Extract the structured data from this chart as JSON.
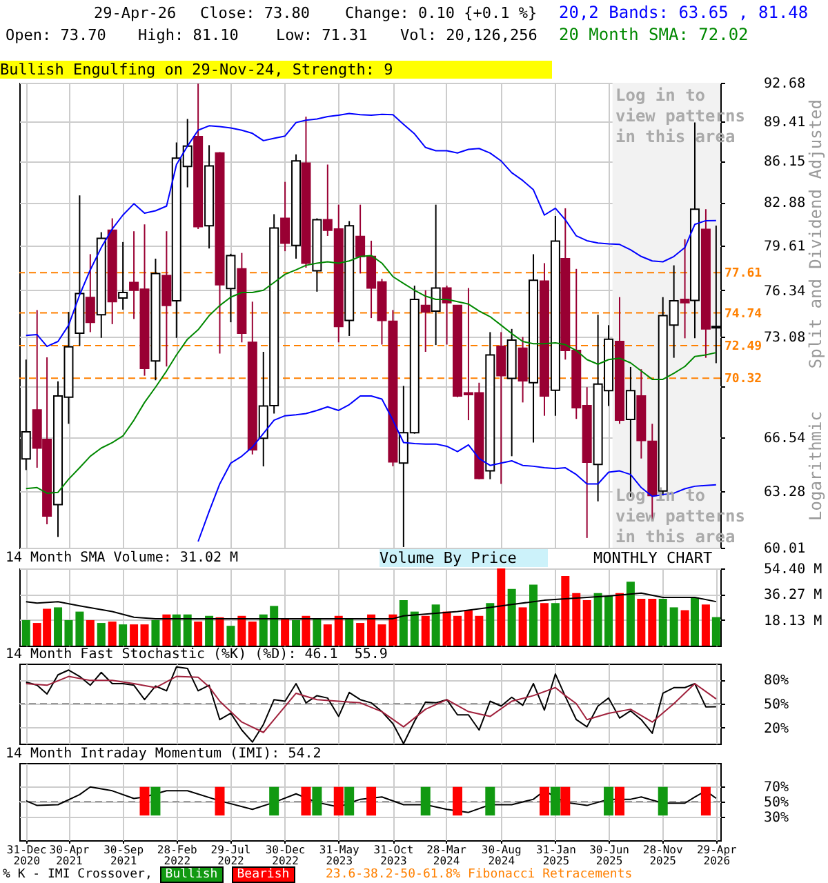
{
  "chart_data": [
    {
      "type": "candlestick",
      "title": "Bullish Engulfing on 29-Nov-24, Strength: 9",
      "ylabel": "Split and Dividend Adjusted",
      "annotations": [
        "29-Apr-26",
        "Close: 73.80",
        "Change: 0.10 {+0.1 %}",
        "Open: 73.70",
        "High: 81.10",
        "Low: 71.31",
        "Vol: 20,126,256",
        "Log in to view patterns in this area",
        "Log in to view patterns in this area",
        "Logarithmic",
        "Volume By Price",
        "MONTHLY CHART"
      ],
      "x": [
        "2020-12-31",
        "2021-01-31",
        "2021-02-28",
        "2021-03-31",
        "2021-04-30",
        "2021-05-31",
        "2021-06-30",
        "2021-07-31",
        "2021-08-31",
        "2021-09-30",
        "2021-10-31",
        "2021-11-30",
        "2021-12-31",
        "2022-01-31",
        "2022-02-28",
        "2022-03-31",
        "2022-04-30",
        "2022-05-31",
        "2022-06-30",
        "2022-07-31",
        "2022-08-31",
        "2022-09-30",
        "2022-10-31",
        "2022-11-30",
        "2022-12-31",
        "2023-01-31",
        "2023-02-28",
        "2023-03-31",
        "2023-04-30",
        "2023-05-31",
        "2023-06-30",
        "2023-07-31",
        "2023-08-31",
        "2023-09-30",
        "2023-10-31",
        "2023-11-30",
        "2023-12-31",
        "2024-01-31",
        "2024-02-29",
        "2024-03-31",
        "2024-04-30",
        "2024-05-31",
        "2024-06-30",
        "2024-07-31",
        "2024-08-31",
        "2024-09-30",
        "2024-10-31",
        "2024-11-30",
        "2024-12-31",
        "2025-01-31",
        "2025-02-28",
        "2025-03-31",
        "2025-04-30",
        "2025-05-31",
        "2025-06-30",
        "2025-07-31",
        "2025-08-31",
        "2025-09-30",
        "2025-10-31",
        "2025-11-30",
        "2025-12-31",
        "2026-01-31",
        "2026-02-28",
        "2026-03-31",
        "2026-04-29"
      ],
      "xlim": [
        "2020-12-12",
        "2026-05-11"
      ],
      "xticks": [
        {
          "value": "2020-12-31",
          "label": null
        },
        {
          "value": "2021-04-30",
          "label": null
        },
        {
          "value": "2021-09-30",
          "label": null
        },
        {
          "value": "2022-02-28",
          "label": null
        },
        {
          "value": "2022-07-29",
          "label": null
        },
        {
          "value": "2022-12-30",
          "label": null
        },
        {
          "value": "2023-05-31",
          "label": null
        },
        {
          "value": "2023-10-31",
          "label": null
        },
        {
          "value": "2024-03-28",
          "label": null
        },
        {
          "value": "2024-08-30",
          "label": null
        },
        {
          "value": "2025-01-31",
          "label": null
        },
        {
          "value": "2025-06-30",
          "label": null
        },
        {
          "value": "2025-11-28",
          "label": null
        },
        {
          "value": "2026-04-29",
          "label": null
        }
      ],
      "tick_labels": "y",
      "log": true,
      "grid": true,
      "ylim": [
        60.01,
        92.68
      ],
      "yticks": [
        60.01,
        63.28,
        66.54,
        {
          "value": 69.81,
          "label": null
        },
        73.08,
        76.34,
        79.61,
        82.88,
        86.15,
        89.41,
        92.68
      ],
      "ohlc": [
        [
          65.2,
          71.55,
          64.53,
          66.88
        ],
        [
          68.26,
          74.94,
          64.67,
          65.87
        ],
        [
          66.4,
          71.7,
          61.34,
          61.82
        ],
        [
          62.48,
          70.11,
          60.62,
          69.16
        ],
        [
          69.08,
          74.81,
          67.38,
          72.41
        ],
        [
          73.34,
          83.42,
          72.47,
          76.11
        ],
        [
          75.82,
          78.96,
          73.41,
          74.09
        ],
        [
          74.61,
          80.6,
          73.02,
          80.14
        ],
        [
          80.74,
          81.65,
          73.96,
          75.53
        ],
        [
          75.79,
          79.86,
          74.97,
          76.18
        ],
        [
          76.9,
          80.67,
          74.32,
          76.34
        ],
        [
          76.41,
          81.19,
          70.48,
          70.97
        ],
        [
          71.46,
          78.63,
          70.18,
          77.55
        ],
        [
          77.39,
          80.67,
          71.09,
          75.26
        ],
        [
          75.59,
          87.65,
          73.02,
          86.38
        ],
        [
          85.71,
          89.6,
          84.05,
          87.35
        ],
        [
          88.14,
          92.6,
          80.84,
          81.02
        ],
        [
          81.09,
          87.43,
          79.38,
          85.75
        ],
        [
          86.79,
          86.87,
          71.95,
          76.73
        ],
        [
          76.47,
          78.99,
          74.09,
          78.86
        ],
        [
          77.88,
          79.05,
          72.71,
          73.34
        ],
        [
          72.71,
          75.53,
          65.48,
          65.76
        ],
        [
          66.48,
          72.07,
          64.75,
          68.51
        ],
        [
          68.54,
          81.97,
          68.03,
          80.91
        ],
        [
          81.65,
          84.48,
          79.18,
          79.78
        ],
        [
          79.61,
          86.68,
          78.63,
          86.15
        ],
        [
          85.97,
          89.79,
          77.97,
          78.3
        ],
        [
          77.75,
          81.65,
          76.24,
          81.54
        ],
        [
          81.54,
          85.86,
          80.32,
          80.74
        ],
        [
          80.84,
          82.7,
          72.71,
          73.8
        ],
        [
          74.22,
          81.44,
          73.15,
          81.09
        ],
        [
          80.28,
          82.7,
          77.55,
          78.79
        ],
        [
          78.79,
          79.96,
          74.38,
          76.5
        ],
        [
          76.93,
          77.16,
          72.56,
          74.22
        ],
        [
          74.16,
          74.94,
          64.76,
          65.03
        ],
        [
          64.95,
          69.81,
          60.05,
          66.82
        ],
        [
          66.82,
          76.67,
          66.76,
          75.69
        ],
        [
          75.26,
          76.34,
          72.07,
          74.81
        ],
        [
          74.87,
          82.7,
          72.53,
          76.5
        ],
        [
          76.5,
          76.67,
          72.56,
          75.46
        ],
        [
          75.26,
          75.3,
          69.08,
          69.16
        ],
        [
          69.36,
          76.5,
          67.61,
          69.25
        ],
        [
          69.36,
          70.02,
          63.98,
          64.03
        ],
        [
          64.48,
          73.41,
          63.98,
          71.86
        ],
        [
          72.44,
          73.41,
          63.7,
          70.48
        ],
        [
          70.3,
          73.63,
          65.37,
          72.87
        ],
        [
          72.32,
          73.08,
          68.74,
          70.15
        ],
        [
          70.02,
          78.96,
          66.21,
          77.06
        ],
        [
          76.99,
          78.3,
          67.89,
          69.16
        ],
        [
          69.53,
          81.83,
          67.89,
          79.93
        ],
        [
          78.63,
          82.42,
          71.55,
          72.16
        ],
        [
          72.16,
          77.88,
          67.69,
          68.4
        ],
        [
          68.54,
          69.73,
          60.56,
          65.01
        ],
        [
          64.87,
          74.61,
          62.67,
          69.93
        ],
        [
          69.5,
          73.89,
          68.51,
          72.93
        ],
        [
          72.77,
          75.85,
          67.38,
          67.61
        ],
        [
          67.66,
          71.06,
          62.93,
          69.5
        ],
        [
          69.16,
          70.91,
          65.23,
          66.34
        ],
        [
          66.29,
          67.38,
          61.56,
          63.01
        ],
        [
          63.28,
          75.85,
          63.01,
          74.55
        ],
        [
          73.89,
          78.14,
          71.67,
          75.59
        ],
        [
          75.69,
          80.07,
          72.99,
          75.46
        ],
        [
          75.62,
          89.3,
          72.99,
          82.35
        ],
        [
          80.81,
          82.35,
          71.67,
          73.63
        ],
        [
          73.7,
          81.1,
          71.31,
          73.8
        ]
      ],
      "colors": [
        "#ffffff",
        "#990033",
        "#990033",
        "#ffffff",
        "#ffffff",
        "#ffffff",
        "#990033",
        "#ffffff",
        "#990033",
        "#ffffff",
        "#990033",
        "#990033",
        "#ffffff",
        "#990033",
        "#ffffff",
        "#ffffff",
        "#990033",
        "#ffffff",
        "#990033",
        "#ffffff",
        "#990033",
        "#990033",
        "#ffffff",
        "#ffffff",
        "#990033",
        "#ffffff",
        "#990033",
        "#ffffff",
        "#990033",
        "#990033",
        "#ffffff",
        "#990033",
        "#990033",
        "#990033",
        "#990033",
        "#ffffff",
        "#ffffff",
        "#990033",
        "#ffffff",
        "#990033",
        "#990033",
        "#990033",
        "#990033",
        "#ffffff",
        "#990033",
        "#ffffff",
        "#990033",
        "#ffffff",
        "#990033",
        "#ffffff",
        "#990033",
        "#990033",
        "#990033",
        "#ffffff",
        "#ffffff",
        "#990033",
        "#ffffff",
        "#990033",
        "#990033",
        "#ffffff",
        "#ffffff",
        "#990033",
        "#ffffff",
        "#990033",
        "#ffffff"
      ],
      "series": [
        {
          "name": "20,2 Bands: 63.65 , 81.48",
          "type": "line",
          "color": "#0000ff",
          "values": [
            73.18,
            73.24,
            72.44,
            72.77,
            73.89,
            76.01,
            77.81,
            79.45,
            80.84,
            81.9,
            82.77,
            82.05,
            82.23,
            82.59,
            85.86,
            87.35,
            88.66,
            89.03,
            88.96,
            88.85,
            88.66,
            88.4,
            87.8,
            87.99,
            88.18,
            89.3,
            89.49,
            89.6,
            89.8,
            89.91,
            90.06,
            89.95,
            89.91,
            89.99,
            89.95,
            89.15,
            88.36,
            87.24,
            86.98,
            86.98,
            86.79,
            87.09,
            87.16,
            86.79,
            86.15,
            85.21,
            84.59,
            83.86,
            81.9,
            82.42,
            81.54,
            80.32,
            79.96,
            79.79,
            79.72,
            79.68,
            79.28,
            78.79,
            78.46,
            78.4,
            78.79,
            79.45,
            81.19,
            81.47,
            81.48
          ]
        },
        {
          "type": "line",
          "color": "#0000ff",
          "values": [
            null,
            null,
            null,
            null,
            null,
            null,
            null,
            null,
            null,
            null,
            null,
            null,
            null,
            null,
            null,
            null,
            60.36,
            62.08,
            63.7,
            64.95,
            65.37,
            65.93,
            66.77,
            67.61,
            67.89,
            67.95,
            68.03,
            68.23,
            68.46,
            68.23,
            68.6,
            69.16,
            69.16,
            68.96,
            67.61,
            66.21,
            66.15,
            66.12,
            66.12,
            65.98,
            65.65,
            66.07,
            65.23,
            64.81,
            64.95,
            65.09,
            64.81,
            64.76,
            64.67,
            64.62,
            64.67,
            64.26,
            63.7,
            63.7,
            64.4,
            64.48,
            64.26,
            63.48,
            62.96,
            63.07,
            63.15,
            63.41,
            63.56,
            63.61,
            63.65
          ]
        },
        {
          "name": "20 Month SMA: 72.02",
          "type": "line",
          "color": "#008800",
          "values": [
            63.42,
            63.48,
            63.15,
            63.2,
            63.98,
            64.67,
            65.37,
            65.87,
            66.21,
            66.62,
            67.61,
            68.74,
            69.73,
            70.79,
            71.86,
            72.93,
            73.57,
            74.55,
            75.26,
            75.85,
            76.18,
            76.18,
            76.34,
            76.9,
            77.49,
            77.81,
            78.14,
            78.3,
            78.4,
            78.3,
            78.46,
            78.79,
            78.86,
            78.3,
            77.32,
            76.83,
            76.34,
            75.92,
            75.69,
            75.69,
            75.53,
            75.36,
            74.87,
            74.48,
            73.89,
            73.31,
            72.77,
            72.62,
            72.62,
            72.68,
            72.56,
            72.16,
            71.55,
            71.24,
            71.55,
            71.64,
            71.33,
            70.79,
            70.24,
            70.24,
            70.64,
            71.09,
            71.76,
            71.86,
            72.02
          ]
        }
      ],
      "ref_lines": [
        {
          "axis": "y",
          "value": 77.61,
          "label": "77.61",
          "color": "#ff8000",
          "line_style": "dashed"
        },
        {
          "axis": "y",
          "value": 74.74,
          "label": "74.74",
          "color": "#ff8000",
          "line_style": "dashed"
        },
        {
          "axis": "y",
          "value": 72.49,
          "label": "72.49",
          "color": "#ff8000",
          "line_style": "dashed"
        },
        {
          "axis": "y",
          "value": 70.32,
          "label": "70.32",
          "color": "#ff8000",
          "line_style": "dashed"
        }
      ],
      "bands": [
        {
          "axis": "x",
          "from": "2025-07-11",
          "to": "2026-05-11",
          "color": "#f2f2f2"
        }
      ]
    },
    {
      "type": "bar",
      "title": "14 Month SMA Volume: 31.02 M",
      "x": [
        "2020-12-31",
        "2021-01-31",
        "2021-02-28",
        "2021-03-31",
        "2021-04-30",
        "2021-05-31",
        "2021-06-30",
        "2021-07-31",
        "2021-08-31",
        "2021-09-30",
        "2021-10-31",
        "2021-11-30",
        "2021-12-31",
        "2022-01-31",
        "2022-02-28",
        "2022-03-31",
        "2022-04-30",
        "2022-05-31",
        "2022-06-30",
        "2022-07-31",
        "2022-08-31",
        "2022-09-30",
        "2022-10-31",
        "2022-11-30",
        "2022-12-31",
        "2023-01-31",
        "2023-02-28",
        "2023-03-31",
        "2023-04-30",
        "2023-05-31",
        "2023-06-30",
        "2023-07-31",
        "2023-08-31",
        "2023-09-30",
        "2023-10-31",
        "2023-11-30",
        "2023-12-31",
        "2024-01-31",
        "2024-02-29",
        "2024-03-31",
        "2024-04-30",
        "2024-05-31",
        "2024-06-30",
        "2024-07-31",
        "2024-08-31",
        "2024-09-30",
        "2024-10-31",
        "2024-11-30",
        "2024-12-31",
        "2025-01-31",
        "2025-02-28",
        "2025-03-31",
        "2025-04-30",
        "2025-05-31",
        "2025-06-30",
        "2025-07-31",
        "2025-08-31",
        "2025-09-30",
        "2025-10-31",
        "2025-11-30",
        "2025-12-31",
        "2026-01-31",
        "2026-02-28",
        "2026-03-31",
        "2026-04-29"
      ],
      "xlim": [
        "2020-12-12",
        "2026-05-11"
      ],
      "xticks": [
        {
          "value": "2020-12-31",
          "label": null
        },
        {
          "value": "2021-04-30",
          "label": null
        },
        {
          "value": "2021-09-30",
          "label": null
        },
        {
          "value": "2022-02-28",
          "label": null
        },
        {
          "value": "2022-07-29",
          "label": null
        },
        {
          "value": "2022-12-30",
          "label": null
        },
        {
          "value": "2023-05-31",
          "label": null
        },
        {
          "value": "2023-10-31",
          "label": null
        },
        {
          "value": "2024-03-28",
          "label": null
        },
        {
          "value": "2024-08-30",
          "label": null
        },
        {
          "value": "2025-01-31",
          "label": null
        },
        {
          "value": "2025-06-30",
          "label": null
        },
        {
          "value": "2025-11-28",
          "label": null
        },
        {
          "value": "2026-04-29",
          "label": null
        }
      ],
      "tick_labels": "y",
      "grid": true,
      "ylim": [
        0,
        54.4
      ],
      "yticks": [
        {
          "value": 18.13,
          "label": "18.13 M"
        },
        {
          "value": 36.27,
          "label": "36.27 M"
        },
        {
          "value": 54.4,
          "label": "54.40 M"
        }
      ],
      "values": [
        18,
        16,
        26,
        27,
        18,
        24,
        18,
        16,
        17,
        15,
        15,
        15,
        18,
        22,
        22,
        22,
        17,
        21,
        20,
        14,
        21,
        17,
        22,
        28,
        19,
        18,
        21,
        19,
        15,
        21,
        19,
        16,
        22,
        15,
        22,
        32,
        24,
        21,
        29,
        24,
        21,
        25,
        21,
        30,
        54.4,
        40,
        27,
        43,
        30,
        30,
        49,
        37,
        32,
        37,
        35,
        37,
        45,
        33,
        33,
        33,
        27,
        25,
        34,
        29,
        20.13
      ],
      "colors": [
        "#119911",
        "#ff0000",
        "#ff0000",
        "#119911",
        "#119911",
        "#119911",
        "#ff0000",
        "#119911",
        "#ff0000",
        "#119911",
        "#ff0000",
        "#ff0000",
        "#119911",
        "#ff0000",
        "#119911",
        "#119911",
        "#ff0000",
        "#119911",
        "#ff0000",
        "#119911",
        "#ff0000",
        "#ff0000",
        "#119911",
        "#119911",
        "#ff0000",
        "#119911",
        "#ff0000",
        "#119911",
        "#ff0000",
        "#ff0000",
        "#119911",
        "#ff0000",
        "#ff0000",
        "#ff0000",
        "#ff0000",
        "#119911",
        "#119911",
        "#ff0000",
        "#119911",
        "#ff0000",
        "#ff0000",
        "#ff0000",
        "#ff0000",
        "#119911",
        "#ff0000",
        "#119911",
        "#ff0000",
        "#119911",
        "#ff0000",
        "#119911",
        "#ff0000",
        "#ff0000",
        "#ff0000",
        "#119911",
        "#119911",
        "#ff0000",
        "#119911",
        "#ff0000",
        "#ff0000",
        "#119911",
        "#119911",
        "#ff0000",
        "#119911",
        "#ff0000",
        "#119911"
      ],
      "series": [
        {
          "type": "line",
          "color": "#000000",
          "x": [
            "2020-12-31",
            "2021-01-31",
            "2021-03-31",
            "2021-05-31",
            "2021-08-31",
            "2021-10-31",
            "2021-12-31",
            "2022-08-31",
            "2023-06-30",
            "2023-10-31",
            "2023-11-30",
            "2024-04-30",
            "2024-07-31",
            "2024-09-30",
            "2024-12-31",
            "2025-02-28",
            "2025-06-30",
            "2025-09-30",
            "2025-11-30",
            "2026-02-28",
            "2026-04-29"
          ],
          "values": [
            31,
            30,
            31,
            28,
            24,
            20,
            19,
            19,
            19,
            19,
            21,
            24,
            27,
            29,
            32,
            33,
            35,
            37,
            34,
            34,
            31.02
          ]
        }
      ]
    },
    {
      "type": "line",
      "title": "14 Month Fast Stochastic (%K) (%D): 46.1  55.9",
      "x": [
        "2020-12-31",
        "2021-01-31",
        "2021-02-28",
        "2021-03-31",
        "2021-04-30",
        "2021-05-31",
        "2021-06-30",
        "2021-07-31",
        "2021-08-31",
        "2021-09-30",
        "2021-10-31",
        "2021-11-30",
        "2021-12-31",
        "2022-01-31",
        "2022-02-28",
        "2022-03-31",
        "2022-04-30",
        "2022-05-31",
        "2022-06-30",
        "2022-07-31",
        "2022-08-31",
        "2022-09-30",
        "2022-10-31",
        "2022-11-30",
        "2022-12-31",
        "2023-01-31",
        "2023-02-28",
        "2023-03-31",
        "2023-04-30",
        "2023-05-31",
        "2023-06-30",
        "2023-07-31",
        "2023-08-31",
        "2023-09-30",
        "2023-10-31",
        "2023-11-30",
        "2023-12-31",
        "2024-01-31",
        "2024-02-29",
        "2024-03-31",
        "2024-04-30",
        "2024-05-31",
        "2024-06-30",
        "2024-07-31",
        "2024-08-31",
        "2024-09-30",
        "2024-10-31",
        "2024-11-30",
        "2024-12-31",
        "2025-01-31",
        "2025-02-28",
        "2025-03-31",
        "2025-04-30",
        "2025-05-31",
        "2025-06-30",
        "2025-07-31",
        "2025-08-31",
        "2025-09-30",
        "2025-10-31",
        "2025-11-30",
        "2025-12-31",
        "2026-01-31",
        "2026-02-28",
        "2026-03-31",
        "2026-04-29"
      ],
      "xlim": [
        "2020-12-12",
        "2026-05-11"
      ],
      "xticks": [
        {
          "value": "2020-12-31",
          "label": null
        },
        {
          "value": "2021-04-30",
          "label": null
        },
        {
          "value": "2021-09-30",
          "label": null
        },
        {
          "value": "2022-02-28",
          "label": null
        },
        {
          "value": "2022-07-29",
          "label": null
        },
        {
          "value": "2022-12-30",
          "label": null
        },
        {
          "value": "2023-05-31",
          "label": null
        },
        {
          "value": "2023-10-31",
          "label": null
        },
        {
          "value": "2024-03-28",
          "label": null
        },
        {
          "value": "2024-08-30",
          "label": null
        },
        {
          "value": "2025-01-31",
          "label": null
        },
        {
          "value": "2025-06-30",
          "label": null
        },
        {
          "value": "2025-11-28",
          "label": null
        },
        {
          "value": "2026-04-29",
          "label": null
        }
      ],
      "tick_labels": "y",
      "grid": true,
      "ylim": [
        0,
        100
      ],
      "yticks": [
        {
          "value": 20,
          "label": "20%"
        },
        {
          "value": 50,
          "label": "50%"
        },
        {
          "value": 80,
          "label": "80%"
        }
      ],
      "ref_lines": [
        {
          "axis": "y",
          "value": 50,
          "color": "#999999",
          "line_style": "dashed"
        }
      ],
      "series": [
        {
          "color": "#000000",
          "values": [
            77,
            73,
            62,
            86,
            92,
            84,
            73,
            89,
            75,
            75,
            73,
            55,
            72,
            66,
            96,
            94,
            66,
            73,
            30,
            38,
            17,
            2,
            24,
            55,
            53,
            75,
            51,
            60,
            57,
            34,
            64,
            55,
            51,
            40,
            25,
            0,
            28,
            52,
            51,
            55,
            36,
            36,
            17,
            53,
            47,
            58,
            48,
            75,
            42,
            87,
            59,
            30,
            21,
            47,
            57,
            32,
            41,
            30,
            13,
            63,
            70,
            70,
            75,
            46,
            46.1
          ]
        },
        {
          "color": "#a0213c",
          "x": [
            "2020-12-31",
            "2021-02-28",
            "2021-04-30",
            "2021-06-30",
            "2021-08-31",
            "2021-10-31",
            "2021-12-31",
            "2022-02-28",
            "2022-04-30",
            "2022-05-31",
            "2022-06-30",
            "2022-08-31",
            "2022-10-31",
            "2022-11-30",
            "2023-01-31",
            "2023-03-31",
            "2023-05-31",
            "2023-07-31",
            "2023-09-30",
            "2023-11-30",
            "2024-01-31",
            "2024-03-31",
            "2024-05-31",
            "2024-07-31",
            "2024-09-30",
            "2024-11-30",
            "2025-01-31",
            "2025-02-28",
            "2025-03-31",
            "2025-04-30",
            "2025-06-30",
            "2025-08-31",
            "2025-10-31",
            "2025-12-31",
            "2026-02-28",
            "2026-04-29"
          ],
          "values": [
            75,
            73,
            84,
            79,
            79,
            75,
            70,
            84,
            83,
            71,
            53,
            27,
            14,
            30,
            63,
            55,
            53,
            51,
            40,
            21,
            43,
            55,
            40,
            34,
            53,
            60,
            70,
            60,
            50,
            30,
            38,
            43,
            27,
            50,
            75,
            55.9
          ]
        }
      ]
    },
    {
      "type": "line",
      "title": "14 Month Intraday Momentum (IMI): 54.2",
      "legend": "bottom",
      "legend_title": "% K - IMI Crossover,",
      "annotations": [
        "23.6-38.2-50-61.8% Fibonacci Retracements"
      ],
      "xlim": [
        "2020-12-12",
        "2026-05-11"
      ],
      "xticks": [
        {
          "value": "2020-12-31",
          "label": "31-Dec 2020"
        },
        {
          "value": "2021-04-30",
          "label": "30-Apr 2021"
        },
        {
          "value": "2021-09-30",
          "label": "30-Sep 2021"
        },
        {
          "value": "2022-02-28",
          "label": "28-Feb 2022"
        },
        {
          "value": "2022-07-29",
          "label": "29-Jul 2022"
        },
        {
          "value": "2022-12-30",
          "label": "30-Dec 2022"
        },
        {
          "value": "2023-05-31",
          "label": "31-May 2023"
        },
        {
          "value": "2023-10-31",
          "label": "31-Oct 2023"
        },
        {
          "value": "2024-03-28",
          "label": "28-Mar 2024"
        },
        {
          "value": "2024-08-30",
          "label": "30-Aug 2024"
        },
        {
          "value": "2025-01-31",
          "label": "31-Jan 2025"
        },
        {
          "value": "2025-06-30",
          "label": "30-Jun 2025"
        },
        {
          "value": "2025-11-28",
          "label": "28-Nov 2025"
        },
        {
          "value": "2026-04-29",
          "label": "29-Apr 2026"
        }
      ],
      "grid": true,
      "ylim": [
        0,
        100
      ],
      "yticks": [
        {
          "value": 30,
          "label": "30%"
        },
        {
          "value": 50,
          "label": "50%"
        },
        {
          "value": 70,
          "label": "70%"
        }
      ],
      "ref_lines": [
        {
          "axis": "y",
          "value": 50,
          "color": "#999999",
          "line_style": "dashed"
        }
      ],
      "series": [
        {
          "color": "#000000",
          "x": [
            "2020-12-31",
            "2021-01-31",
            "2021-03-31",
            "2021-05-31",
            "2021-06-30",
            "2021-08-31",
            "2021-10-31",
            "2021-11-30",
            "2022-01-31",
            "2022-03-31",
            "2022-06-30",
            "2022-09-30",
            "2022-11-30",
            "2023-01-31",
            "2023-03-31",
            "2023-05-31",
            "2023-07-31",
            "2023-09-30",
            "2023-11-30",
            "2024-01-31",
            "2024-03-31",
            "2024-05-31",
            "2024-07-31",
            "2024-09-30",
            "2024-11-30",
            "2024-12-31",
            "2025-02-28",
            "2025-04-30",
            "2025-06-30",
            "2025-08-31",
            "2025-09-30",
            "2025-11-30",
            "2026-01-31",
            "2026-02-28",
            "2026-03-31",
            "2026-04-29"
          ],
          "values": [
            51,
            45,
            46,
            59,
            69,
            64,
            54,
            56,
            64,
            64,
            51,
            40,
            49,
            60,
            49,
            43,
            53,
            56,
            46,
            46,
            40,
            36,
            46,
            46,
            53,
            64,
            49,
            45,
            53,
            53,
            56,
            48,
            48,
            56,
            64,
            54.2
          ]
        },
        {
          "name": "Bullish",
          "type": "bar",
          "color": "#119911",
          "x": [
            "2021-12-31",
            "2022-11-30",
            "2023-03-31",
            "2023-06-30",
            "2024-01-31",
            "2024-07-31",
            "2025-01-31",
            "2025-06-30",
            "2025-11-30"
          ],
          "base": [
            32,
            32,
            32,
            32,
            32,
            32,
            32,
            32,
            32
          ],
          "values": [
            37,
            37,
            37,
            37,
            37,
            37,
            37,
            37,
            37
          ]
        },
        {
          "name": "Bearish",
          "type": "bar",
          "color": "#ff0000",
          "x": [
            "2021-11-30",
            "2022-06-30",
            "2023-02-28",
            "2023-05-31",
            "2023-08-31",
            "2024-04-30",
            "2024-12-31",
            "2025-02-28",
            "2025-07-31",
            "2026-03-31"
          ],
          "base": [
            32,
            32,
            32,
            32,
            32,
            32,
            32,
            32,
            32,
            32
          ],
          "values": [
            37,
            37,
            37,
            37,
            37,
            37,
            37,
            37,
            37,
            37
          ]
        }
      ]
    }
  ]
}
